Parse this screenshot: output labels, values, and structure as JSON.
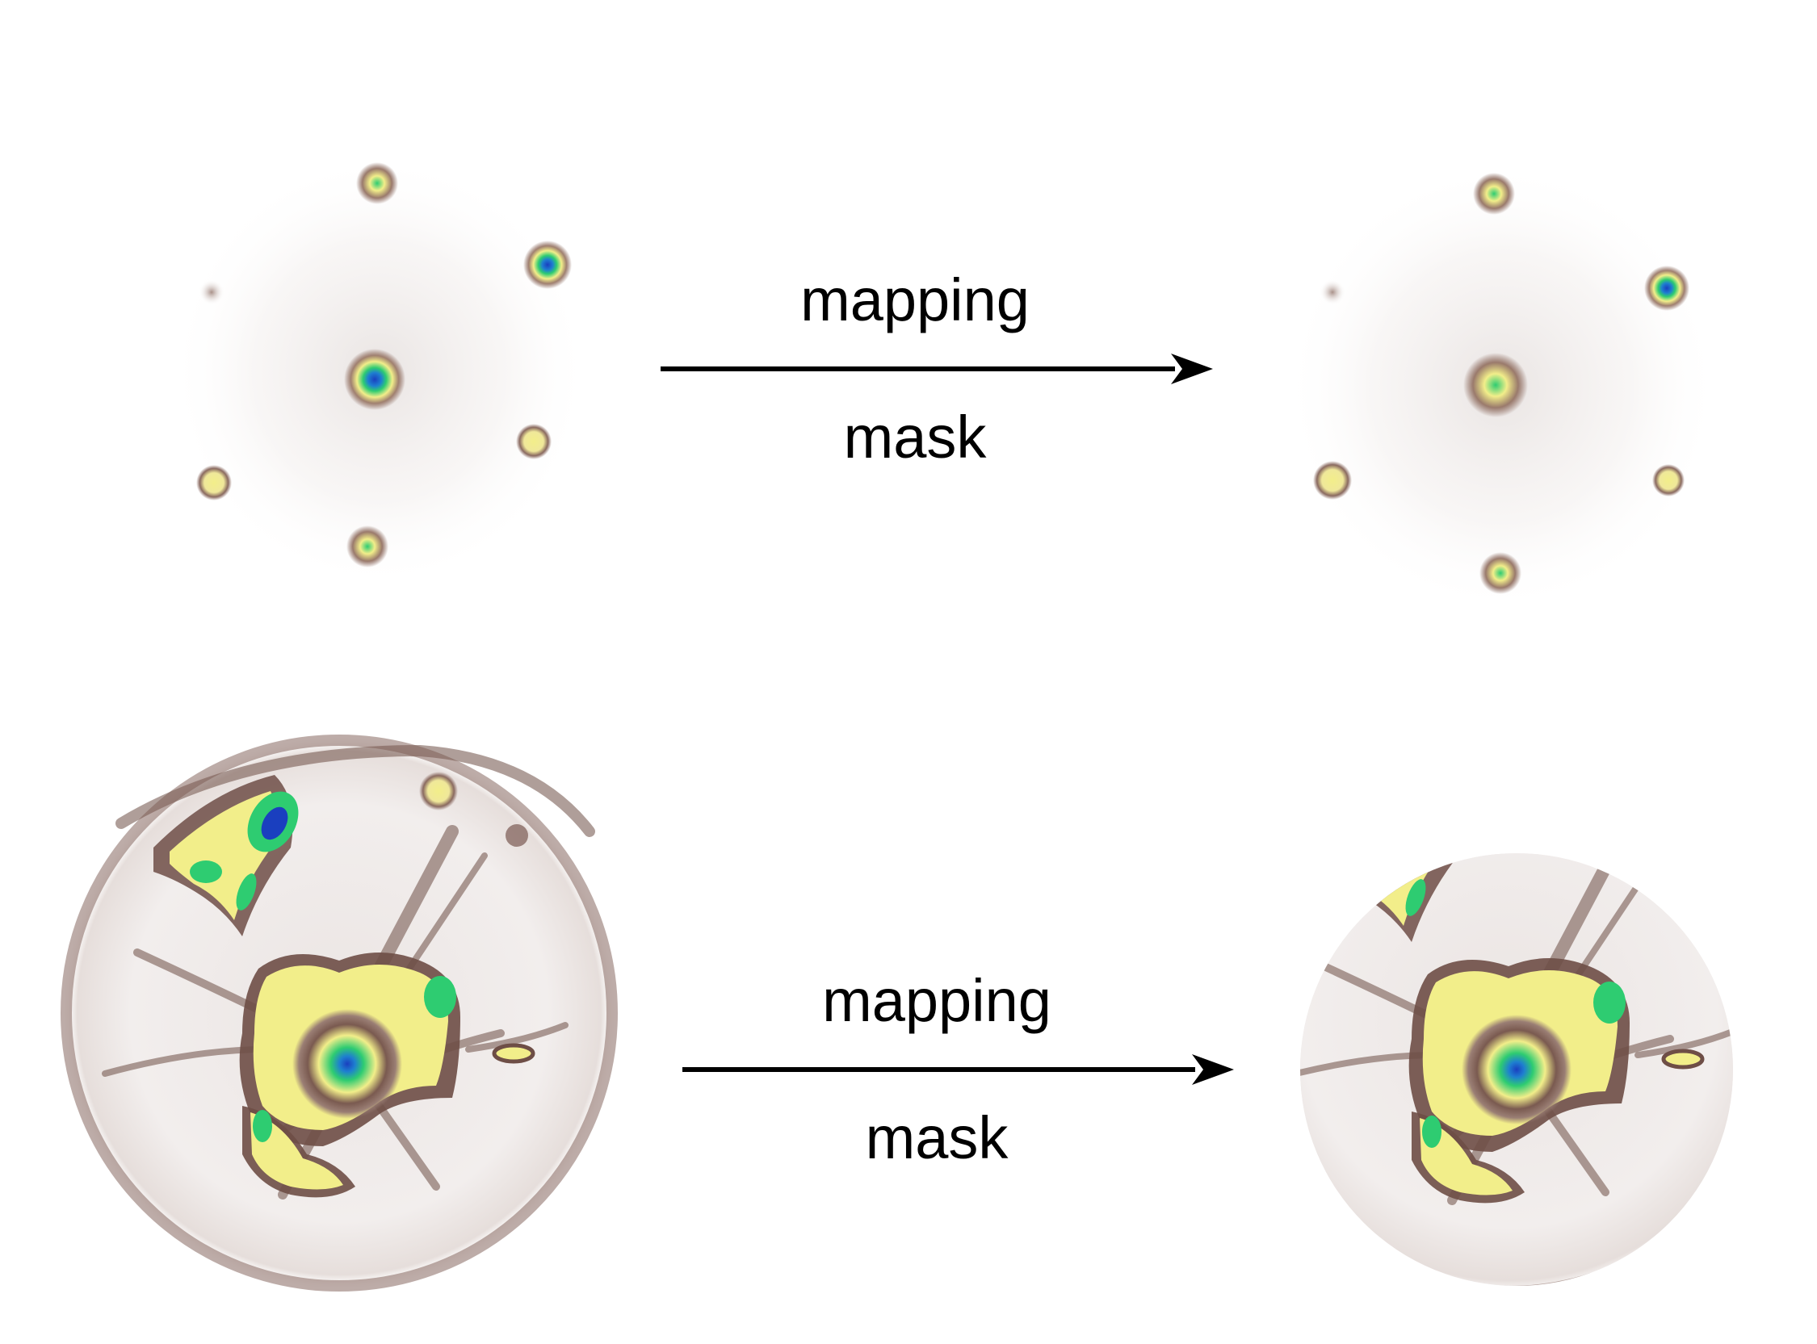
{
  "rows": [
    {
      "id": "spot-pattern",
      "arrow_label_top": "mapping",
      "arrow_label_bottom": "mask"
    },
    {
      "id": "kikuchi-pattern",
      "arrow_label_top": "mapping",
      "arrow_label_bottom": "mask"
    }
  ],
  "colormap": {
    "background": "#ffffff",
    "low": "#8a6a60",
    "mid": "#f2ee8a",
    "high": "#2ecc71",
    "peak": "#1a3fbf"
  }
}
